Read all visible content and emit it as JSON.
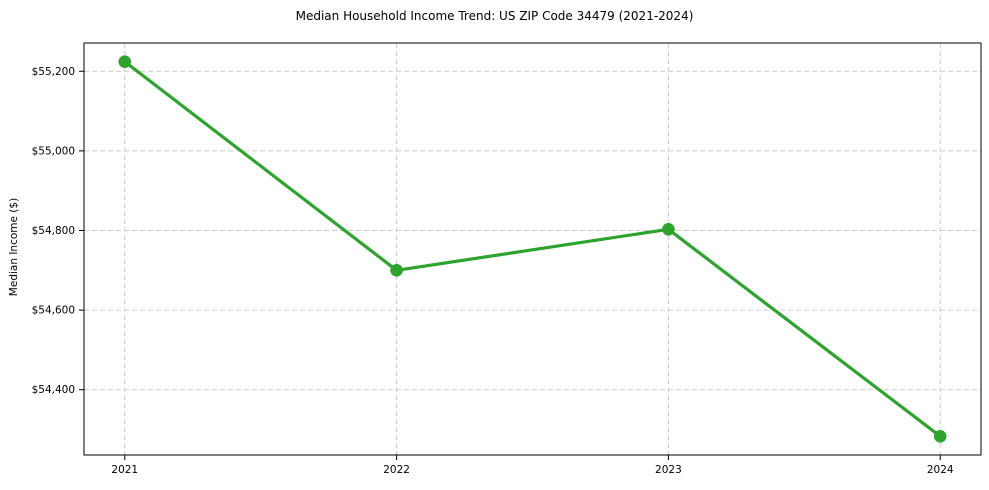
{
  "chart_data": {
    "type": "line",
    "title": "Median Household Income Trend: US ZIP Code 34479 (2021-2024)",
    "xlabel": "",
    "ylabel": "Median Income ($)",
    "x": [
      2021,
      2022,
      2023,
      2024
    ],
    "x_labels": [
      "2021",
      "2022",
      "2023",
      "2024"
    ],
    "values": [
      55224,
      54700,
      54803,
      54283
    ],
    "y_ticks": [
      54400,
      54600,
      54800,
      55000,
      55200
    ],
    "y_tick_labels": [
      "$54,400",
      "$54,600",
      "$54,800",
      "$55,000",
      "$55,200"
    ],
    "ylim": [
      54236,
      55271
    ],
    "xlim": [
      2020.85,
      2024.15
    ],
    "grid": true,
    "grid_style": "dashed",
    "grid_color": "#cccccc",
    "axis_color": "#000000",
    "line_color": "#2ea32e",
    "marker": "circle",
    "marker_radius": 6.3,
    "legend": false
  }
}
